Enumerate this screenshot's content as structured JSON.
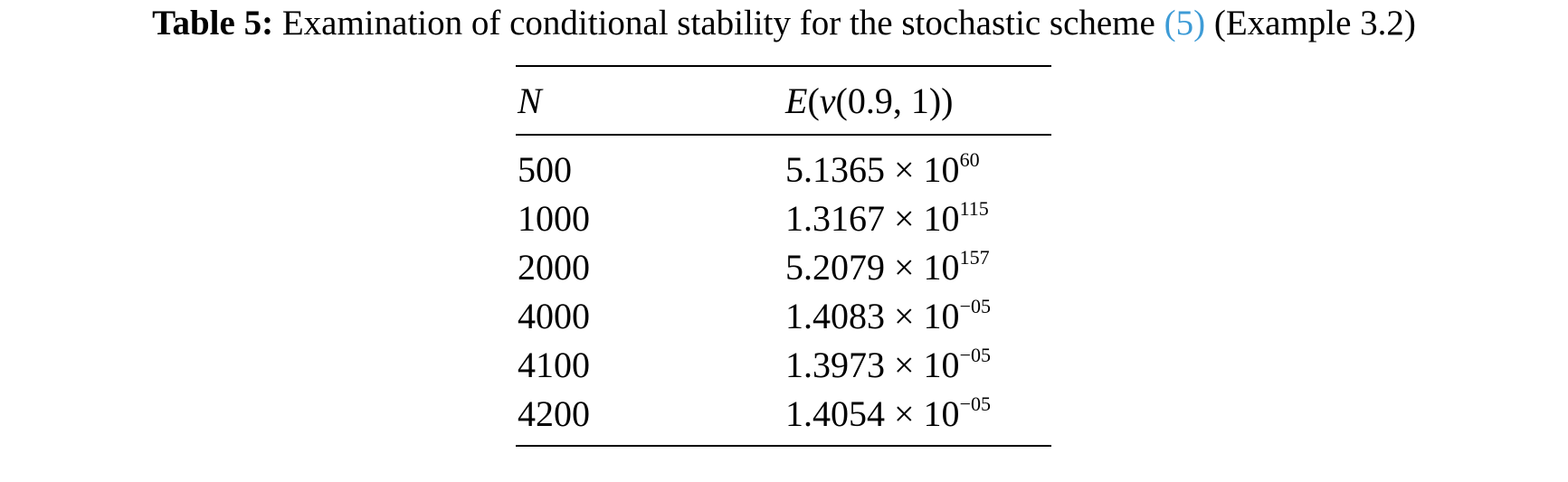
{
  "caption": {
    "label": "Table 5:",
    "text": "Examination of conditional stability for the stochastic scheme",
    "ref": "(5)",
    "suffix": "(Example 3.2)"
  },
  "table": {
    "headers": [
      "N",
      "E(v(0.9, 1))"
    ],
    "rows": [
      {
        "n": "500",
        "mantissa": "5.1365",
        "times": "× 10",
        "exp": "60"
      },
      {
        "n": "1000",
        "mantissa": "1.3167",
        "times": "× 10",
        "exp": "115"
      },
      {
        "n": "2000",
        "mantissa": "5.2079",
        "times": "× 10",
        "exp": "157"
      },
      {
        "n": "4000",
        "mantissa": "1.4083",
        "times": "× 10",
        "exp": "−05"
      },
      {
        "n": "4100",
        "mantissa": "1.3973",
        "times": "× 10",
        "exp": "−05"
      },
      {
        "n": "4200",
        "mantissa": "1.4054",
        "times": "× 10",
        "exp": "−05"
      }
    ]
  },
  "colors": {
    "ref_link": "#3d9bd6"
  }
}
